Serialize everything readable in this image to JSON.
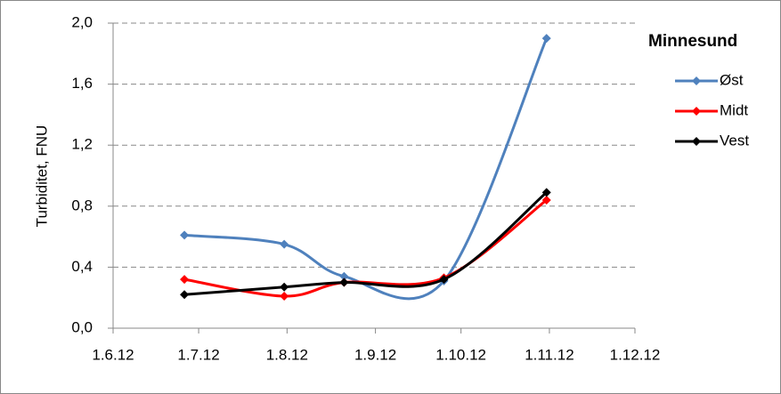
{
  "chart_data": {
    "type": "line",
    "y_label": "Turbiditet, FNU",
    "legend_title": "Minnesund",
    "legend": "right",
    "grid": true,
    "smooth": true,
    "x": [
      "26.6.12",
      "31.7.12",
      "21.8.12",
      "25.9.12",
      "31.10.12"
    ],
    "xlim": [
      "1.6.12",
      "1.12.12"
    ],
    "xticks": [
      "1.6.12",
      "1.7.12",
      "1.8.12",
      "1.9.12",
      "1.10.12",
      "1.11.12",
      "1.12.12"
    ],
    "ylim": [
      0,
      2
    ],
    "yticks": [
      {
        "value": 0,
        "label": "0,0"
      },
      {
        "value": 0.4,
        "label": "0,4"
      },
      {
        "value": 0.8,
        "label": "0,8"
      },
      {
        "value": 1.2,
        "label": "1,2"
      },
      {
        "value": 1.6,
        "label": "1,6"
      },
      {
        "value": 2,
        "label": "2,0"
      }
    ],
    "series": [
      {
        "name": "Øst",
        "color": "#4f81bd",
        "values": [
          0.61,
          0.55,
          0.34,
          0.31,
          1.9
        ]
      },
      {
        "name": "Midt",
        "color": "#ff0000",
        "values": [
          0.32,
          0.21,
          0.3,
          0.33,
          0.84
        ]
      },
      {
        "name": "Vest",
        "color": "#000000",
        "values": [
          0.22,
          0.27,
          0.3,
          0.32,
          0.89
        ]
      }
    ]
  }
}
